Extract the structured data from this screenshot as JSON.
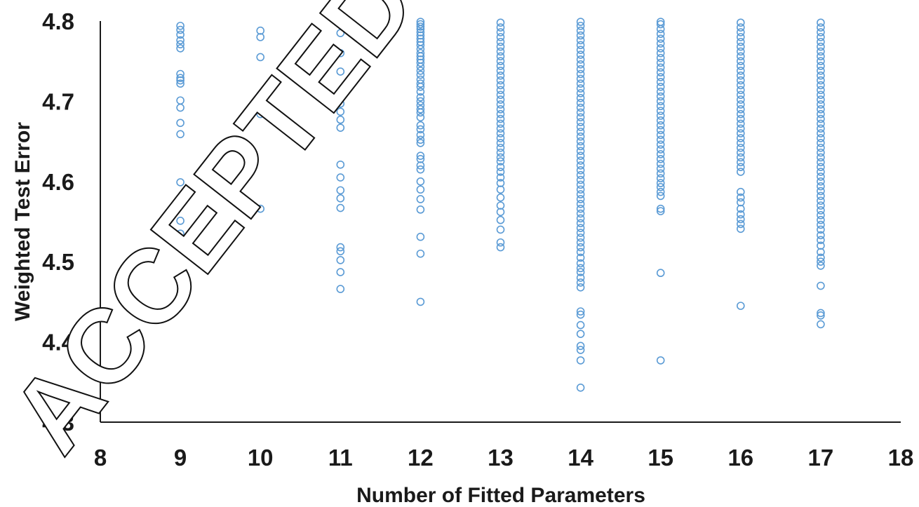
{
  "chart_data": {
    "type": "scatter",
    "xlabel": "Number of Fitted Parameters",
    "ylabel": "Weighted Test Error",
    "xlim": [
      8,
      18
    ],
    "ylim": [
      4.3,
      4.8
    ],
    "x_ticks": [
      "8",
      "9",
      "10",
      "11",
      "12",
      "13",
      "14",
      "15",
      "16",
      "17",
      "18"
    ],
    "y_ticks": [
      "4.3",
      "4.4",
      "4.5",
      "4.6",
      "4.7",
      "4.8"
    ],
    "grid": false,
    "marker_color": "#5b9bd5",
    "points": [
      {
        "x": 9,
        "y": [
          4.535,
          4.551,
          4.599,
          4.659,
          4.673,
          4.692,
          4.701,
          4.722,
          4.726,
          4.729,
          4.734,
          4.766,
          4.771,
          4.776,
          4.783,
          4.789,
          4.794
        ]
      },
      {
        "x": 10,
        "y": [
          4.566,
          4.684,
          4.693,
          4.701,
          4.708,
          4.755,
          4.78,
          4.788
        ]
      },
      {
        "x": 11,
        "y": [
          4.466,
          4.487,
          4.502,
          4.513,
          4.518,
          4.567,
          4.579,
          4.589,
          4.605,
          4.621,
          4.667,
          4.677,
          4.687,
          4.697,
          4.737,
          4.76,
          4.785,
          4.797
        ]
      },
      {
        "x": 12,
        "y": [
          4.45,
          4.51,
          4.531,
          4.565,
          4.578,
          4.59,
          4.6,
          4.615,
          4.62,
          4.628,
          4.632,
          4.648,
          4.652,
          4.658,
          4.665,
          4.67,
          4.68,
          4.686,
          4.69,
          4.695,
          4.7,
          4.705,
          4.712,
          4.718,
          4.722,
          4.727,
          4.733,
          4.738,
          4.743,
          4.748,
          4.752,
          4.756,
          4.76,
          4.765,
          4.77,
          4.774,
          4.778,
          4.782,
          4.786,
          4.79,
          4.793,
          4.796,
          4.799
        ]
      },
      {
        "x": 13,
        "y": [
          4.518,
          4.524,
          4.54,
          4.552,
          4.562,
          4.57,
          4.58,
          4.59,
          4.598,
          4.605,
          4.612,
          4.618,
          4.625,
          4.63,
          4.636,
          4.642,
          4.648,
          4.654,
          4.66,
          4.666,
          4.672,
          4.678,
          4.684,
          4.69,
          4.696,
          4.702,
          4.708,
          4.714,
          4.72,
          4.726,
          4.732,
          4.738,
          4.744,
          4.75,
          4.756,
          4.762,
          4.768,
          4.774,
          4.78,
          4.786,
          4.792,
          4.798
        ]
      },
      {
        "x": 14,
        "y": [
          4.343,
          4.377,
          4.39,
          4.395,
          4.41,
          4.421,
          4.434,
          4.438,
          4.468,
          4.474,
          4.48,
          4.487,
          4.492,
          4.498,
          4.505,
          4.512,
          4.518,
          4.524,
          4.53,
          4.536,
          4.542,
          4.548,
          4.554,
          4.56,
          4.566,
          4.572,
          4.578,
          4.584,
          4.59,
          4.596,
          4.602,
          4.608,
          4.614,
          4.62,
          4.626,
          4.632,
          4.638,
          4.644,
          4.65,
          4.656,
          4.662,
          4.668,
          4.674,
          4.68,
          4.686,
          4.692,
          4.698,
          4.704,
          4.71,
          4.716,
          4.722,
          4.728,
          4.734,
          4.74,
          4.746,
          4.752,
          4.758,
          4.764,
          4.77,
          4.776,
          4.782,
          4.788,
          4.794,
          4.799
        ]
      },
      {
        "x": 15,
        "y": [
          4.377,
          4.486,
          4.563,
          4.566,
          4.582,
          4.587,
          4.593,
          4.598,
          4.604,
          4.61,
          4.616,
          4.622,
          4.628,
          4.634,
          4.64,
          4.646,
          4.652,
          4.658,
          4.664,
          4.67,
          4.676,
          4.682,
          4.688,
          4.694,
          4.7,
          4.706,
          4.712,
          4.718,
          4.724,
          4.73,
          4.736,
          4.742,
          4.748,
          4.754,
          4.76,
          4.766,
          4.772,
          4.778,
          4.784,
          4.79,
          4.796,
          4.799
        ]
      },
      {
        "x": 16,
        "y": [
          4.445,
          4.541,
          4.547,
          4.553,
          4.559,
          4.566,
          4.574,
          4.58,
          4.587,
          4.612,
          4.618,
          4.624,
          4.63,
          4.636,
          4.642,
          4.648,
          4.654,
          4.66,
          4.666,
          4.672,
          4.678,
          4.684,
          4.69,
          4.696,
          4.702,
          4.708,
          4.714,
          4.72,
          4.726,
          4.732,
          4.738,
          4.744,
          4.75,
          4.756,
          4.762,
          4.768,
          4.774,
          4.78,
          4.786,
          4.792,
          4.798
        ]
      },
      {
        "x": 17,
        "y": [
          4.422,
          4.433,
          4.436,
          4.47,
          4.495,
          4.5,
          4.505,
          4.512,
          4.52,
          4.527,
          4.533,
          4.54,
          4.546,
          4.552,
          4.558,
          4.564,
          4.57,
          4.576,
          4.582,
          4.588,
          4.594,
          4.6,
          4.606,
          4.612,
          4.618,
          4.624,
          4.63,
          4.636,
          4.642,
          4.648,
          4.654,
          4.66,
          4.666,
          4.672,
          4.678,
          4.684,
          4.69,
          4.696,
          4.702,
          4.708,
          4.714,
          4.72,
          4.726,
          4.732,
          4.738,
          4.744,
          4.75,
          4.756,
          4.762,
          4.768,
          4.774,
          4.78,
          4.786,
          4.792,
          4.798
        ]
      }
    ]
  },
  "watermark": {
    "text": "ACCEPTED M"
  }
}
